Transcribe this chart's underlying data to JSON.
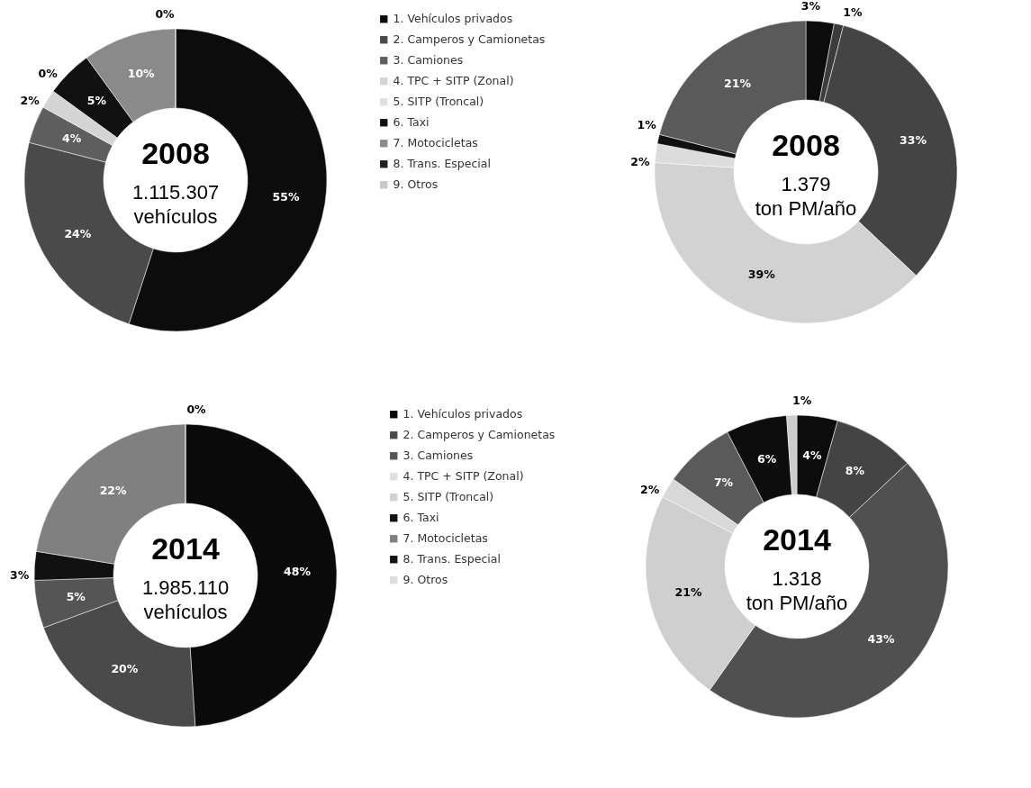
{
  "chart_data": [
    {
      "type": "donut",
      "title": "2008",
      "subtitle": "1.115.307\nvehículos",
      "categories": [
        "1. Vehículos privados",
        "2. Camperos y Camionetas",
        "3. Camiones",
        "4. TPC + SITP (Zonal)",
        "5. SITP (Troncal)",
        "6. Taxi",
        "7. Motocicletas",
        "8. Trans. Especial",
        "9. Otros"
      ],
      "values": [
        55,
        24,
        4,
        2,
        0,
        5,
        10,
        0,
        null
      ],
      "value_labels": [
        "55%",
        "24%",
        "4%",
        "2%",
        "0%",
        "5%",
        "10%",
        "0%",
        null
      ],
      "colors": [
        "#0c0c0c",
        "#4a4a4a",
        "#5e5e5e",
        "#d4d4d4",
        "#e0e0e0",
        "#111111",
        "#8a8a8a",
        "#202020",
        "#c8c8c8"
      ],
      "legend": "right"
    },
    {
      "type": "donut",
      "title": "2008",
      "subtitle": "1.379\nton PM/año",
      "categories": [
        null,
        null,
        null,
        null,
        null,
        null,
        null,
        null,
        null
      ],
      "values": [
        3,
        1,
        33,
        39,
        2,
        1,
        21,
        null,
        null
      ],
      "value_labels": [
        "3%",
        "1%",
        "33%",
        "39%",
        "2%",
        "1%",
        "21%",
        null,
        null
      ],
      "colors": [
        "#0c0c0c",
        "#3c3c3c",
        "#444444",
        "#d2d2d2",
        "#dcdcdc",
        "#111111",
        "#5a5a5a",
        "#202020",
        "#c8c8c8"
      ]
    },
    {
      "type": "donut",
      "title": "2014",
      "subtitle": "1.985.110\nvehículos",
      "categories": [
        "1. Vehículos privados",
        "2. Camperos y Camionetas",
        "3. Camiones",
        "4. TPC + SITP (Zonal)",
        "5. SITP (Troncal)",
        "6. Taxi",
        "7. Motocicletas",
        "8. Trans. Especial",
        "9. Otros"
      ],
      "values": [
        48,
        20,
        5,
        null,
        null,
        3,
        22,
        null,
        0
      ],
      "value_labels": [
        "48%",
        "20%",
        "5%",
        null,
        null,
        "3%",
        "22%",
        null,
        "0%"
      ],
      "colors": [
        "#0a0a0a",
        "#4a4a4a",
        "#555555",
        "#e0e0e0",
        "#d0d0d0",
        "#111111",
        "#808080",
        "#111111",
        "#dddddd"
      ],
      "legend": "right"
    },
    {
      "type": "donut",
      "title": "2014",
      "subtitle": "1.318\nton PM/año",
      "categories": [
        null,
        null,
        null,
        null,
        null,
        null,
        null,
        null,
        null
      ],
      "values": [
        4,
        8,
        43,
        21,
        2,
        null,
        7,
        6,
        1
      ],
      "value_labels": [
        "4%",
        "8%",
        "43%",
        "21%",
        "2%",
        null,
        "7%",
        "6%",
        "1%"
      ],
      "colors": [
        "#0c0c0c",
        "#444444",
        "#505050",
        "#cfcfcf",
        "#d8d8d8",
        "#111111",
        "#5a5a5a",
        "#0d0d0d",
        "#cccccc"
      ]
    }
  ]
}
